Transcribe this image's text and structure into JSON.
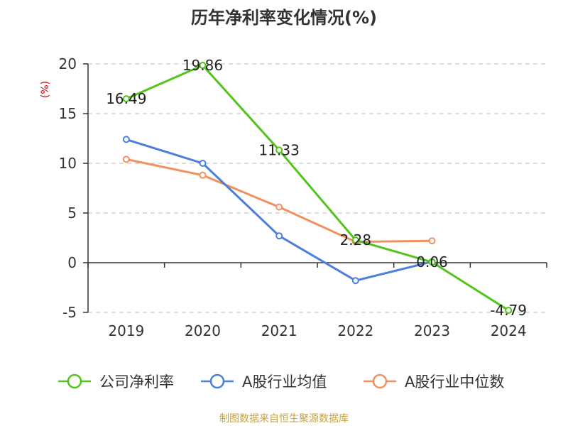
{
  "colors": {
    "net_margin": "#52c41a",
    "industry_avg": "#4a7fdc",
    "industry_median": "#f39060",
    "unit": "#cc0000",
    "source": "#c8a23a",
    "axis": "#333333",
    "grid": "#bbbbbb"
  },
  "footer": {
    "source": "制图数据来自恒生聚源数据库"
  },
  "chart_data": {
    "type": "line",
    "title": "历年净利率变化情况(%)",
    "ylabel": "(%)",
    "xlabel": "",
    "categories": [
      "2019",
      "2020",
      "2021",
      "2022",
      "2023",
      "2024"
    ],
    "ylim": [
      -5,
      20
    ],
    "yticks": [
      -5,
      0,
      5,
      10,
      15,
      20
    ],
    "ytick_labels": [
      "-5",
      "0",
      "5",
      "10",
      "15",
      "20"
    ],
    "grid": true,
    "legend_position": "bottom",
    "series": [
      {
        "name": "公司净利率",
        "color_key": "net_margin",
        "values": [
          16.49,
          19.86,
          11.33,
          2.28,
          0.06,
          -4.79
        ],
        "labels": [
          "16.49",
          "19.86",
          "11.33",
          "2.28",
          "0.06",
          "-4.79"
        ]
      },
      {
        "name": "A股行业均值",
        "color_key": "industry_avg",
        "values": [
          12.4,
          10.0,
          2.7,
          -1.8,
          0.1,
          null
        ]
      },
      {
        "name": "A股行业中位数",
        "color_key": "industry_median",
        "values": [
          10.4,
          8.8,
          5.6,
          2.1,
          2.2,
          null
        ]
      }
    ]
  }
}
